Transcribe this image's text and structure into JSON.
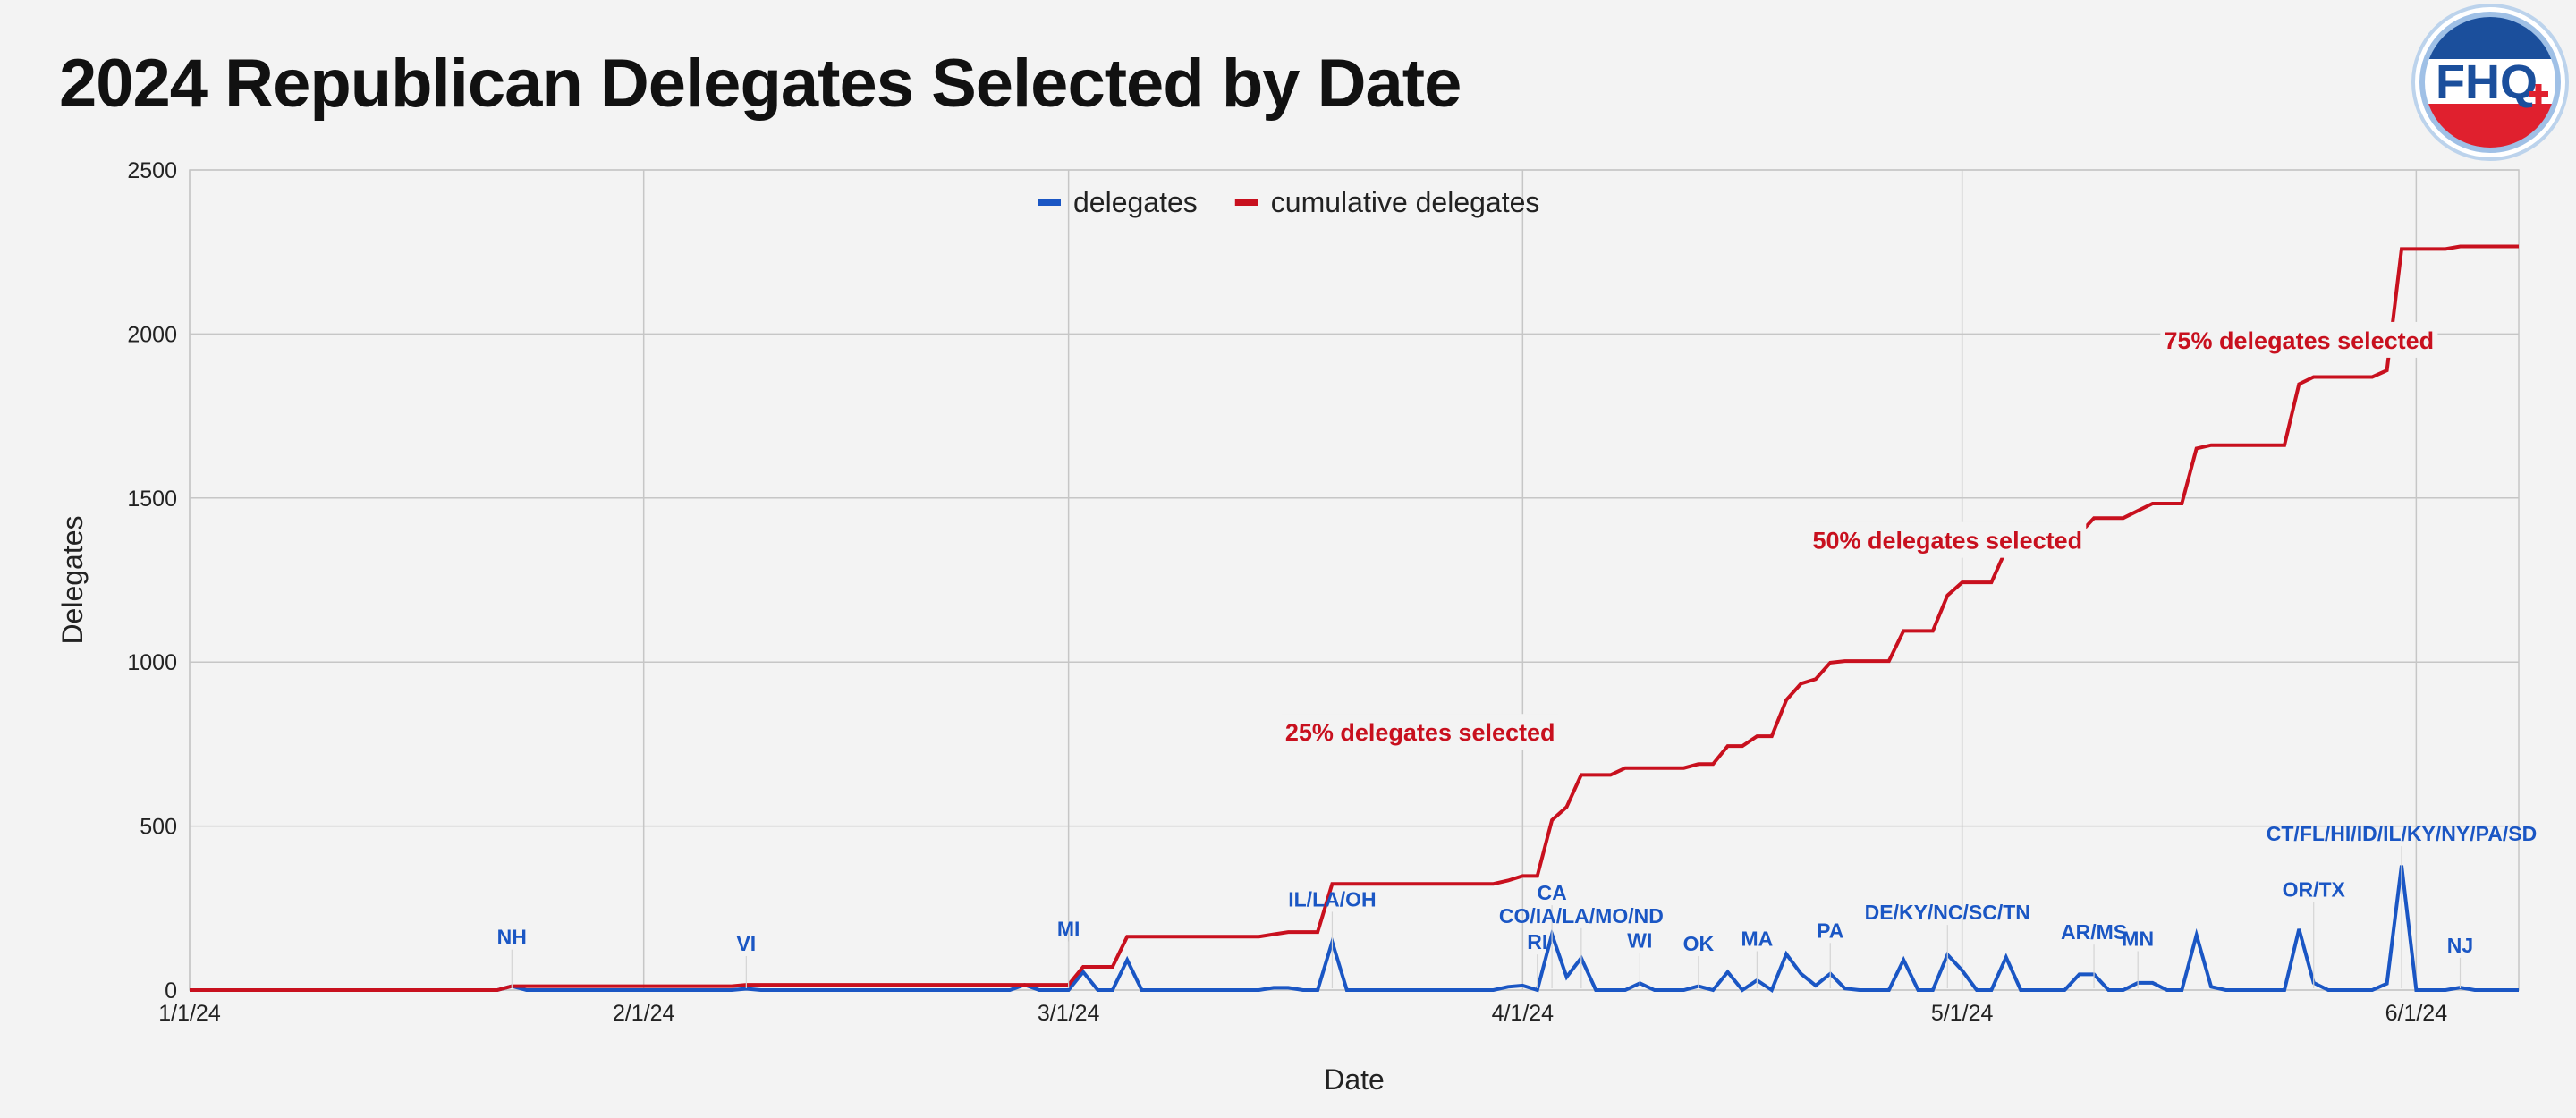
{
  "title": "2024 Republican Delegates Selected by Date",
  "logo_text": "FHQ",
  "colors": {
    "delegates": "#1a56c4",
    "cumulative": "#c8101e",
    "grid": "#c6c6c6",
    "logo_blue": "#1b4f9c",
    "logo_red": "#e0202e"
  },
  "chart_data": {
    "type": "line",
    "x_axis_type": "date",
    "xlabel": "Date",
    "ylabel": "Delegates",
    "xlim": [
      "2024-01-01",
      "2024-06-08"
    ],
    "ylim": [
      0,
      2500
    ],
    "x_ticks": [
      {
        "date": "2024-01-01",
        "label": "1/1/24"
      },
      {
        "date": "2024-02-01",
        "label": "2/1/24"
      },
      {
        "date": "2024-03-01",
        "label": "3/1/24"
      },
      {
        "date": "2024-04-01",
        "label": "4/1/24"
      },
      {
        "date": "2024-05-01",
        "label": "5/1/24"
      },
      {
        "date": "2024-06-01",
        "label": "6/1/24"
      }
    ],
    "y_ticks": [
      0,
      500,
      1000,
      1500,
      2000,
      2500
    ],
    "grid": true,
    "legend_position": "top-center",
    "series": [
      {
        "name": "delegates",
        "color": "#1a56c4",
        "points": [
          [
            "2024-01-01",
            0
          ],
          [
            "2024-01-22",
            0
          ],
          [
            "2024-01-23",
            12
          ],
          [
            "2024-01-24",
            0
          ],
          [
            "2024-02-07",
            0
          ],
          [
            "2024-02-08",
            4
          ],
          [
            "2024-02-09",
            0
          ],
          [
            "2024-02-26",
            0
          ],
          [
            "2024-02-27",
            16
          ],
          [
            "2024-02-28",
            0
          ],
          [
            "2024-03-01",
            0
          ],
          [
            "2024-03-02",
            55
          ],
          [
            "2024-03-03",
            0
          ],
          [
            "2024-03-04",
            0
          ],
          [
            "2024-03-05",
            92
          ],
          [
            "2024-03-06",
            0
          ],
          [
            "2024-03-14",
            0
          ],
          [
            "2024-03-15",
            7
          ],
          [
            "2024-03-16",
            7
          ],
          [
            "2024-03-17",
            0
          ],
          [
            "2024-03-18",
            0
          ],
          [
            "2024-03-19",
            147
          ],
          [
            "2024-03-20",
            0
          ],
          [
            "2024-03-30",
            0
          ],
          [
            "2024-03-31",
            10
          ],
          [
            "2024-04-01",
            14
          ],
          [
            "2024-04-02",
            0
          ],
          [
            "2024-04-03",
            170
          ],
          [
            "2024-04-04",
            40
          ],
          [
            "2024-04-05",
            98
          ],
          [
            "2024-04-06",
            0
          ],
          [
            "2024-04-08",
            0
          ],
          [
            "2024-04-09",
            21
          ],
          [
            "2024-04-10",
            0
          ],
          [
            "2024-04-12",
            0
          ],
          [
            "2024-04-13",
            12
          ],
          [
            "2024-04-14",
            0
          ],
          [
            "2024-04-15",
            55
          ],
          [
            "2024-04-16",
            0
          ],
          [
            "2024-04-17",
            30
          ],
          [
            "2024-04-18",
            0
          ],
          [
            "2024-04-19",
            110
          ],
          [
            "2024-04-20",
            50
          ],
          [
            "2024-04-21",
            14
          ],
          [
            "2024-04-22",
            50
          ],
          [
            "2024-04-23",
            5
          ],
          [
            "2024-04-24",
            0
          ],
          [
            "2024-04-26",
            0
          ],
          [
            "2024-04-27",
            92
          ],
          [
            "2024-04-28",
            0
          ],
          [
            "2024-04-29",
            0
          ],
          [
            "2024-04-30",
            108
          ],
          [
            "2024-05-01",
            60
          ],
          [
            "2024-05-02",
            0
          ],
          [
            "2024-05-03",
            0
          ],
          [
            "2024-05-04",
            100
          ],
          [
            "2024-05-05",
            0
          ],
          [
            "2024-05-08",
            0
          ],
          [
            "2024-05-09",
            48
          ],
          [
            "2024-05-10",
            48
          ],
          [
            "2024-05-11",
            0
          ],
          [
            "2024-05-12",
            0
          ],
          [
            "2024-05-13",
            22
          ],
          [
            "2024-05-14",
            22
          ],
          [
            "2024-05-15",
            0
          ],
          [
            "2024-05-16",
            0
          ],
          [
            "2024-05-17",
            168
          ],
          [
            "2024-05-18",
            10
          ],
          [
            "2024-05-19",
            0
          ],
          [
            "2024-05-23",
            0
          ],
          [
            "2024-05-24",
            186
          ],
          [
            "2024-05-25",
            22
          ],
          [
            "2024-05-26",
            0
          ],
          [
            "2024-05-29",
            0
          ],
          [
            "2024-05-30",
            20
          ],
          [
            "2024-05-31",
            380
          ],
          [
            "2024-06-01",
            0
          ],
          [
            "2024-06-03",
            0
          ],
          [
            "2024-06-04",
            8
          ],
          [
            "2024-06-05",
            0
          ],
          [
            "2024-06-08",
            0
          ]
        ]
      },
      {
        "name": "cumulative delegates",
        "color": "#c8101e",
        "points": [
          [
            "2024-01-01",
            0
          ],
          [
            "2024-01-22",
            0
          ],
          [
            "2024-01-23",
            12
          ],
          [
            "2024-02-07",
            12
          ],
          [
            "2024-02-08",
            16
          ],
          [
            "2024-02-29",
            16
          ],
          [
            "2024-03-01",
            16
          ],
          [
            "2024-03-02",
            71
          ],
          [
            "2024-03-04",
            71
          ],
          [
            "2024-03-05",
            163
          ],
          [
            "2024-03-14",
            163
          ],
          [
            "2024-03-15",
            170
          ],
          [
            "2024-03-16",
            177
          ],
          [
            "2024-03-18",
            177
          ],
          [
            "2024-03-19",
            324
          ],
          [
            "2024-03-30",
            324
          ],
          [
            "2024-03-31",
            334
          ],
          [
            "2024-04-01",
            348
          ],
          [
            "2024-04-02",
            348
          ],
          [
            "2024-04-03",
            518
          ],
          [
            "2024-04-04",
            558
          ],
          [
            "2024-04-05",
            656
          ],
          [
            "2024-04-07",
            656
          ],
          [
            "2024-04-08",
            677
          ],
          [
            "2024-04-12",
            677
          ],
          [
            "2024-04-13",
            689
          ],
          [
            "2024-04-14",
            689
          ],
          [
            "2024-04-15",
            744
          ],
          [
            "2024-04-16",
            744
          ],
          [
            "2024-04-17",
            774
          ],
          [
            "2024-04-18",
            774
          ],
          [
            "2024-04-19",
            884
          ],
          [
            "2024-04-20",
            934
          ],
          [
            "2024-04-21",
            948
          ],
          [
            "2024-04-22",
            998
          ],
          [
            "2024-04-23",
            1003
          ],
          [
            "2024-04-26",
            1003
          ],
          [
            "2024-04-27",
            1095
          ],
          [
            "2024-04-29",
            1095
          ],
          [
            "2024-04-30",
            1203
          ],
          [
            "2024-05-01",
            1243
          ],
          [
            "2024-05-03",
            1243
          ],
          [
            "2024-05-04",
            1343
          ],
          [
            "2024-05-08",
            1343
          ],
          [
            "2024-05-09",
            1391
          ],
          [
            "2024-05-10",
            1439
          ],
          [
            "2024-05-12",
            1439
          ],
          [
            "2024-05-13",
            1461
          ],
          [
            "2024-05-14",
            1483
          ],
          [
            "2024-05-16",
            1483
          ],
          [
            "2024-05-17",
            1651
          ],
          [
            "2024-05-18",
            1661
          ],
          [
            "2024-05-23",
            1661
          ],
          [
            "2024-05-24",
            1847
          ],
          [
            "2024-05-25",
            1869
          ],
          [
            "2024-05-28",
            1869
          ],
          [
            "2024-05-29",
            1869
          ],
          [
            "2024-05-30",
            1889
          ],
          [
            "2024-05-31",
            2259
          ],
          [
            "2024-06-03",
            2259
          ],
          [
            "2024-06-04",
            2267
          ],
          [
            "2024-06-08",
            2267
          ]
        ]
      }
    ],
    "state_labels": [
      {
        "text": "NH",
        "date": "2024-01-23",
        "y": 140
      },
      {
        "text": "VI",
        "date": "2024-02-08",
        "y": 120
      },
      {
        "text": "MI",
        "date": "2024-03-01",
        "y": 165
      },
      {
        "text": "IL/LA/OH",
        "date": "2024-03-19",
        "y": 255
      },
      {
        "text": "CA",
        "date": "2024-04-03",
        "y": 275
      },
      {
        "text": "CO/IA/LA/MO/ND",
        "date": "2024-04-05",
        "y": 205
      },
      {
        "text": "RI",
        "date": "2024-04-02",
        "y": 125
      },
      {
        "text": "WI",
        "date": "2024-04-09",
        "y": 130
      },
      {
        "text": "OK",
        "date": "2024-04-13",
        "y": 120
      },
      {
        "text": "MA",
        "date": "2024-04-17",
        "y": 135
      },
      {
        "text": "PA",
        "date": "2024-04-22",
        "y": 160
      },
      {
        "text": "DE/KY/NC/SC/TN",
        "date": "2024-04-30",
        "y": 215
      },
      {
        "text": "AR/MS",
        "date": "2024-05-10",
        "y": 155
      },
      {
        "text": "MN",
        "date": "2024-05-13",
        "y": 135
      },
      {
        "text": "OR/TX",
        "date": "2024-05-25",
        "y": 285
      },
      {
        "text": "CT/FL/HI/ID/IL/KY/NY/PA/SD",
        "date": "2024-05-31",
        "y": 455
      },
      {
        "text": "NJ",
        "date": "2024-06-04",
        "y": 115
      }
    ],
    "milestone_labels": [
      {
        "text": "25% delegates selected",
        "date": "2024-03-25",
        "y": 760
      },
      {
        "text": "50% delegates selected",
        "date": "2024-04-30",
        "y": 1345
      },
      {
        "text": "75% delegates selected",
        "date": "2024-05-24",
        "y": 1955
      }
    ]
  }
}
